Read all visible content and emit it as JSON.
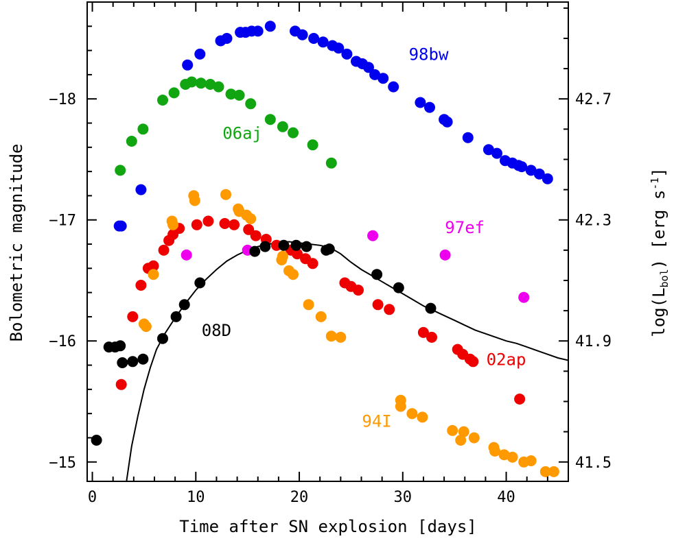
{
  "chart_data": {
    "type": "scatter",
    "xlabel": "Time after SN explosion [days]",
    "ylabel": "Bolometric magnitude",
    "ylabel_right_main": "log(L",
    "ylabel_right_sub": "bol",
    "ylabel_right_tail": ")  [erg s",
    "ylabel_right_sup": "-1",
    "ylabel_right_end": "]",
    "xlim": [
      -0.5,
      46
    ],
    "ylim": [
      -14.84,
      -18.8
    ],
    "y_inverted": true,
    "x_ticks": [
      0,
      10,
      20,
      30,
      40
    ],
    "x_tick_labels": [
      "0",
      "10",
      "20",
      "30",
      "40"
    ],
    "y_ticks": [
      -15,
      -16,
      -17,
      -18
    ],
    "y_tick_labels": [
      "−15",
      "−16",
      "−17",
      "−18"
    ],
    "y_right_ticks": [
      -15,
      -16,
      -17,
      -18
    ],
    "y_right_tick_labels": [
      "41.5",
      "41.9",
      "42.3",
      "42.7"
    ],
    "grid": false,
    "legend": "none",
    "series": [
      {
        "name": "98bw",
        "color": "#0000ee",
        "points": [
          [
            2.8,
            -16.95
          ],
          [
            2.6,
            -16.95
          ],
          [
            4.7,
            -17.25
          ],
          [
            9.2,
            -18.28
          ],
          [
            10.4,
            -18.37
          ],
          [
            12.4,
            -18.48
          ],
          [
            13.0,
            -18.5
          ],
          [
            14.3,
            -18.55
          ],
          [
            14.8,
            -18.55
          ],
          [
            15.4,
            -18.56
          ],
          [
            16.0,
            -18.56
          ],
          [
            17.2,
            -18.6
          ],
          [
            19.6,
            -18.56
          ],
          [
            20.3,
            -18.53
          ],
          [
            21.4,
            -18.5
          ],
          [
            22.3,
            -18.47
          ],
          [
            23.2,
            -18.44
          ],
          [
            23.8,
            -18.42
          ],
          [
            24.6,
            -18.37
          ],
          [
            25.5,
            -18.31
          ],
          [
            26.1,
            -18.29
          ],
          [
            26.7,
            -18.26
          ],
          [
            27.3,
            -18.2
          ],
          [
            28.1,
            -18.17
          ],
          [
            29.1,
            -18.1
          ],
          [
            31.7,
            -17.97
          ],
          [
            32.6,
            -17.93
          ],
          [
            34.0,
            -17.83
          ],
          [
            34.3,
            -17.81
          ],
          [
            36.3,
            -17.68
          ],
          [
            38.3,
            -17.58
          ],
          [
            39.1,
            -17.55
          ],
          [
            39.9,
            -17.49
          ],
          [
            40.6,
            -17.47
          ],
          [
            41.2,
            -17.45
          ],
          [
            41.5,
            -17.44
          ],
          [
            42.4,
            -17.41
          ],
          [
            43.2,
            -17.38
          ],
          [
            44.0,
            -17.34
          ]
        ]
      },
      {
        "name": "06aj",
        "color": "#11a611",
        "points": [
          [
            2.7,
            -17.41
          ],
          [
            3.8,
            -17.65
          ],
          [
            4.9,
            -17.75
          ],
          [
            6.8,
            -17.99
          ],
          [
            7.9,
            -18.05
          ],
          [
            9.0,
            -18.12
          ],
          [
            9.6,
            -18.14
          ],
          [
            10.5,
            -18.13
          ],
          [
            11.4,
            -18.12
          ],
          [
            12.2,
            -18.1
          ],
          [
            13.4,
            -18.04
          ],
          [
            14.2,
            -18.03
          ],
          [
            15.3,
            -17.96
          ],
          [
            17.2,
            -17.83
          ],
          [
            18.4,
            -17.77
          ],
          [
            19.4,
            -17.72
          ],
          [
            21.3,
            -17.62
          ],
          [
            23.1,
            -17.47
          ]
        ]
      },
      {
        "name": "02ap",
        "color": "#ee0000",
        "points": [
          [
            2.8,
            -15.64
          ],
          [
            3.9,
            -16.2
          ],
          [
            4.7,
            -16.46
          ],
          [
            5.4,
            -16.6
          ],
          [
            5.9,
            -16.62
          ],
          [
            6.9,
            -16.75
          ],
          [
            7.4,
            -16.83
          ],
          [
            7.8,
            -16.88
          ],
          [
            8.4,
            -16.93
          ],
          [
            10.1,
            -16.96
          ],
          [
            11.2,
            -16.99
          ],
          [
            12.8,
            -16.97
          ],
          [
            13.7,
            -16.96
          ],
          [
            15.1,
            -16.92
          ],
          [
            15.8,
            -16.87
          ],
          [
            16.8,
            -16.84
          ],
          [
            17.8,
            -16.79
          ],
          [
            19.2,
            -16.75
          ],
          [
            19.8,
            -16.72
          ],
          [
            20.6,
            -16.68
          ],
          [
            21.3,
            -16.64
          ],
          [
            24.4,
            -16.48
          ],
          [
            25.0,
            -16.45
          ],
          [
            25.7,
            -16.42
          ],
          [
            27.6,
            -16.3
          ],
          [
            28.7,
            -16.26
          ],
          [
            32.0,
            -16.07
          ],
          [
            32.8,
            -16.03
          ],
          [
            35.3,
            -15.93
          ],
          [
            35.8,
            -15.89
          ],
          [
            36.5,
            -15.85
          ],
          [
            36.8,
            -15.83
          ],
          [
            41.3,
            -15.52
          ]
        ]
      },
      {
        "name": "94I",
        "color": "#ff9900",
        "points": [
          [
            5.2,
            -16.12
          ],
          [
            5.0,
            -16.14
          ],
          [
            5.9,
            -16.55
          ],
          [
            7.8,
            -16.96
          ],
          [
            7.7,
            -16.99
          ],
          [
            9.8,
            -17.2
          ],
          [
            9.9,
            -17.16
          ],
          [
            12.9,
            -17.21
          ],
          [
            14.1,
            -17.09
          ],
          [
            14.2,
            -17.07
          ],
          [
            14.9,
            -17.04
          ],
          [
            15.3,
            -17.01
          ],
          [
            18.3,
            -16.67
          ],
          [
            18.4,
            -16.7
          ],
          [
            19.0,
            -16.58
          ],
          [
            19.4,
            -16.55
          ],
          [
            20.9,
            -16.3
          ],
          [
            22.1,
            -16.2
          ],
          [
            23.1,
            -16.04
          ],
          [
            24.0,
            -16.03
          ],
          [
            29.8,
            -15.51
          ],
          [
            29.8,
            -15.46
          ],
          [
            30.9,
            -15.4
          ],
          [
            31.9,
            -15.37
          ],
          [
            34.8,
            -15.26
          ],
          [
            35.9,
            -15.25
          ],
          [
            35.6,
            -15.18
          ],
          [
            36.9,
            -15.2
          ],
          [
            38.9,
            -15.09
          ],
          [
            38.8,
            -15.12
          ],
          [
            39.8,
            -15.06
          ],
          [
            40.6,
            -15.04
          ],
          [
            41.7,
            -15.0
          ],
          [
            42.4,
            -15.01
          ],
          [
            43.8,
            -14.92
          ],
          [
            44.6,
            -14.92
          ]
        ]
      },
      {
        "name": "97ef",
        "color": "#ee00ee",
        "points": [
          [
            9.1,
            -16.71
          ],
          [
            15.0,
            -16.75
          ],
          [
            27.1,
            -16.87
          ],
          [
            34.1,
            -16.71
          ],
          [
            41.7,
            -16.36
          ]
        ]
      },
      {
        "name": "08D",
        "color": "#000000",
        "points": [
          [
            0.4,
            -15.18
          ],
          [
            1.6,
            -15.95
          ],
          [
            2.2,
            -15.95
          ],
          [
            2.7,
            -15.96
          ],
          [
            2.9,
            -15.82
          ],
          [
            3.9,
            -15.83
          ],
          [
            4.9,
            -15.85
          ],
          [
            6.8,
            -16.02
          ],
          [
            8.1,
            -16.2
          ],
          [
            8.9,
            -16.3
          ],
          [
            10.4,
            -16.48
          ],
          [
            15.7,
            -16.74
          ],
          [
            16.7,
            -16.78
          ],
          [
            18.5,
            -16.79
          ],
          [
            19.7,
            -16.79
          ],
          [
            20.7,
            -16.78
          ],
          [
            22.6,
            -16.75
          ],
          [
            22.9,
            -16.76
          ],
          [
            27.5,
            -16.55
          ],
          [
            29.6,
            -16.44
          ],
          [
            32.7,
            -16.27
          ]
        ]
      }
    ],
    "model_curve": {
      "color": "#000000",
      "points": [
        [
          3.3,
          -14.84
        ],
        [
          3.8,
          -15.13
        ],
        [
          4.4,
          -15.38
        ],
        [
          5.0,
          -15.6
        ],
        [
          5.6,
          -15.78
        ],
        [
          6.2,
          -15.93
        ],
        [
          7.0,
          -16.06
        ],
        [
          8.0,
          -16.19
        ],
        [
          9.0,
          -16.31
        ],
        [
          10.0,
          -16.42
        ],
        [
          11.0,
          -16.51
        ],
        [
          12.0,
          -16.59
        ],
        [
          13.0,
          -16.66
        ],
        [
          14.0,
          -16.71
        ],
        [
          15.0,
          -16.75
        ],
        [
          16.0,
          -16.78
        ],
        [
          17.0,
          -16.8
        ],
        [
          18.0,
          -16.81
        ],
        [
          19.0,
          -16.82
        ],
        [
          20.0,
          -16.81
        ],
        [
          21.0,
          -16.8
        ],
        [
          22.0,
          -16.79
        ],
        [
          23.0,
          -16.77
        ],
        [
          24.0,
          -16.72
        ],
        [
          25.0,
          -16.65
        ],
        [
          26.0,
          -16.59
        ],
        [
          27.0,
          -16.54
        ],
        [
          28.0,
          -16.49
        ],
        [
          29.0,
          -16.44
        ],
        [
          30.0,
          -16.39
        ],
        [
          31.0,
          -16.34
        ],
        [
          32.0,
          -16.29
        ],
        [
          33.0,
          -16.25
        ],
        [
          34.0,
          -16.21
        ],
        [
          35.0,
          -16.17
        ],
        [
          36.0,
          -16.13
        ],
        [
          37.0,
          -16.09
        ],
        [
          38.0,
          -16.06
        ],
        [
          39.0,
          -16.03
        ],
        [
          40.0,
          -16.0
        ],
        [
          41.0,
          -15.98
        ],
        [
          42.0,
          -15.95
        ],
        [
          43.0,
          -15.92
        ],
        [
          44.0,
          -15.89
        ],
        [
          45.0,
          -15.86
        ],
        [
          46.0,
          -15.84
        ]
      ]
    },
    "annotations": [
      {
        "text": "98bw",
        "x": 32.5,
        "y": -18.32,
        "color": "#0000ee"
      },
      {
        "text": "06aj",
        "x": 14.5,
        "y": -17.67,
        "color": "#11a611"
      },
      {
        "text": "97ef",
        "x": 36.0,
        "y": -16.89,
        "color": "#ee00ee"
      },
      {
        "text": "08D",
        "x": 12.0,
        "y": -16.04,
        "color": "#000000"
      },
      {
        "text": "02ap",
        "x": 40.0,
        "y": -15.8,
        "color": "#ee0000"
      },
      {
        "text": "94I",
        "x": 27.5,
        "y": -15.29,
        "color": "#ff9900"
      }
    ]
  }
}
